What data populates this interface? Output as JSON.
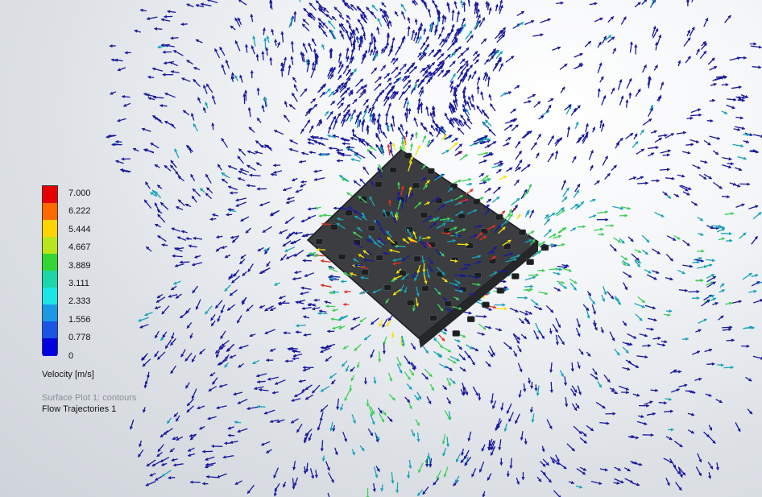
{
  "legend": {
    "title": "Velocity [m/s]",
    "ticks": [
      "7.000",
      "6.222",
      "5.444",
      "4.667",
      "3.889",
      "3.111",
      "2.333",
      "1.556",
      "0.778",
      "0"
    ],
    "colors": [
      "#e60000",
      "#ff6a00",
      "#ffd400",
      "#b8e61a",
      "#33d633",
      "#1ad6a8",
      "#1ae6e6",
      "#1a9ae6",
      "#1a55e6",
      "#0000e0"
    ]
  },
  "plots": [
    {
      "label": "Surface Plot 1: contours",
      "color": "#8a8f96"
    },
    {
      "label": "Flow Trajectories 1",
      "color": "#111111"
    }
  ],
  "palette": {
    "slow": "#1a1a9c",
    "medium": "#18a3b8",
    "fast": "#3fcf5a",
    "peak": "#f4e20a",
    "max": "#e03020",
    "model_body": "#3b3d40",
    "model_part": "#1d1e20"
  }
}
